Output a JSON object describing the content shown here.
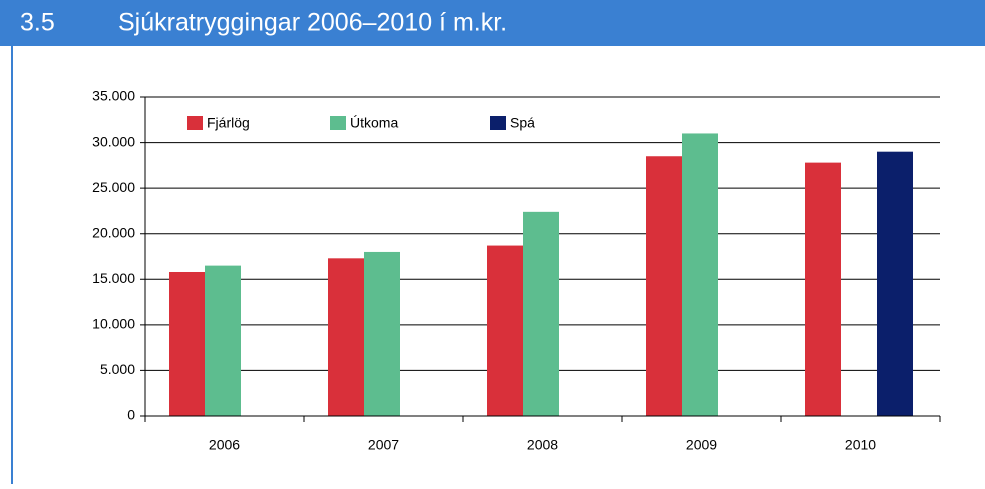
{
  "header": {
    "number": "3.5",
    "title": "Sjúkratryggingar 2006–2010 í m.kr."
  },
  "chart_data": {
    "type": "bar",
    "categories": [
      "2006",
      "2007",
      "2008",
      "2009",
      "2010"
    ],
    "series": [
      {
        "name": "Fjárlög",
        "color": "#d9303a",
        "values": [
          15800,
          17300,
          18700,
          28500,
          27800
        ]
      },
      {
        "name": "Útkoma",
        "color": "#5dbd8f",
        "values": [
          16500,
          18000,
          22400,
          31000,
          null
        ]
      },
      {
        "name": "Spá",
        "color": "#0b1f6b",
        "values": [
          null,
          null,
          null,
          null,
          29000
        ]
      }
    ],
    "ylim": [
      0,
      35000
    ],
    "yticks": [
      0,
      {
        "value": 5000,
        "label": "5.000"
      },
      {
        "value": 10000,
        "label": "10.000"
      },
      {
        "value": 15000,
        "label": "15.000"
      },
      {
        "value": 20000,
        "label": "20.000"
      },
      {
        "value": 25000,
        "label": "25.000"
      },
      {
        "value": 30000,
        "label": "30.000"
      },
      {
        "value": 35000,
        "label": "35.000"
      }
    ],
    "grid": true,
    "legend": "top"
  }
}
